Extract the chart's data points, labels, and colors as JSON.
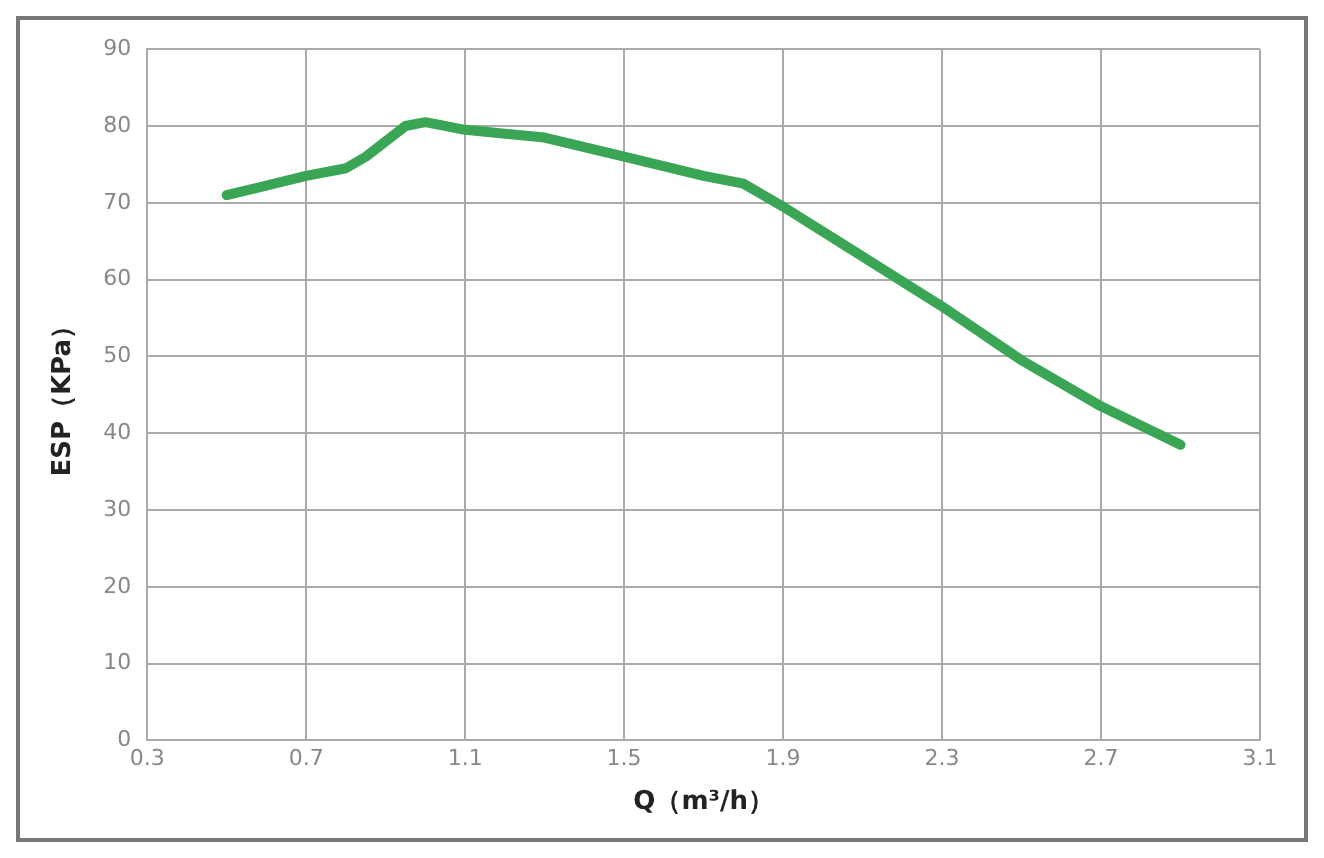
{
  "chart_data": {
    "type": "line",
    "xlabel": "Q（m³/h）",
    "ylabel": "ESP（KPa）",
    "x": [
      0.5,
      0.7,
      0.8,
      0.85,
      0.95,
      1.0,
      1.1,
      1.3,
      1.5,
      1.7,
      1.8,
      1.9,
      2.1,
      2.3,
      2.5,
      2.7,
      2.9
    ],
    "series": [
      {
        "color": "#3aa655",
        "values": [
          71,
          73.5,
          74.5,
          76,
          80,
          80.5,
          79.5,
          78.5,
          76,
          73.5,
          72.5,
          69.5,
          63,
          56.5,
          49.5,
          43.5,
          38.5
        ]
      }
    ],
    "xlim": [
      0.3,
      3.1
    ],
    "xticks": [
      0.3,
      0.7,
      1.1,
      1.5,
      1.9,
      2.3,
      2.7,
      3.1
    ],
    "ylim": [
      0,
      90
    ],
    "yticks": [
      0,
      10,
      20,
      30,
      40,
      50,
      60,
      70,
      80,
      90
    ],
    "grid": true,
    "legend": false,
    "marker": "none",
    "line_style": "solid"
  }
}
